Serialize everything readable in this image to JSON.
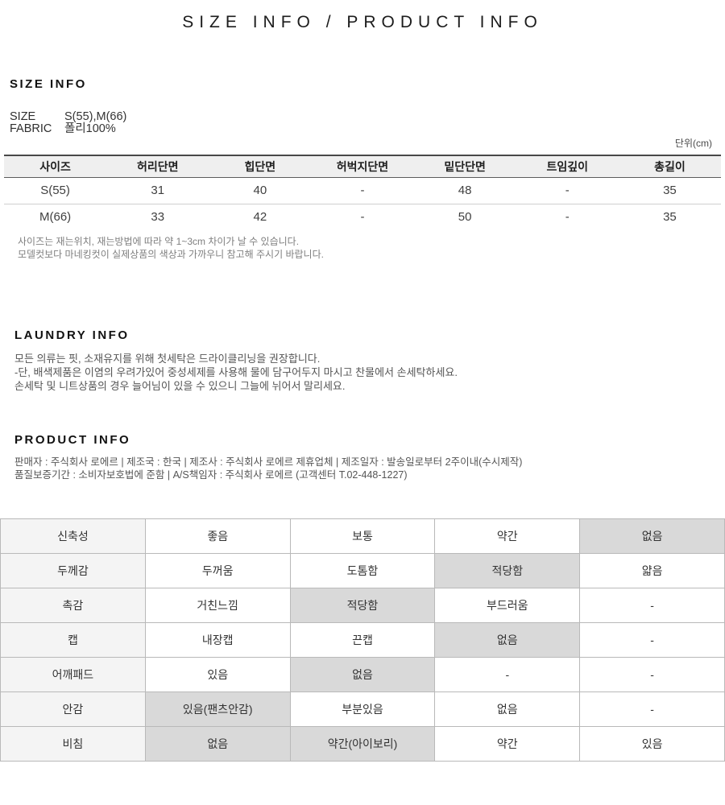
{
  "page_title": "SIZE INFO / PRODUCT INFO",
  "size_info": {
    "heading": "SIZE INFO",
    "fields": [
      {
        "label": "SIZE",
        "value": "S(55),M(66)"
      },
      {
        "label": "FABRIC",
        "value": "폴리100%"
      }
    ],
    "unit_label": "단위(cm)",
    "table": {
      "headers": [
        "사이즈",
        "허리단면",
        "힙단면",
        "허벅지단면",
        "밑단단면",
        "트임깊이",
        "총길이"
      ],
      "rows": [
        [
          "S(55)",
          "31",
          "40",
          "-",
          "48",
          "-",
          "35"
        ],
        [
          "M(66)",
          "33",
          "42",
          "-",
          "50",
          "-",
          "35"
        ]
      ]
    },
    "notes": [
      "사이즈는 재는위치, 재는방법에 따라 약 1~3cm 차이가 날 수 있습니다.",
      "모델컷보다 마네킹컷이 실제상품의 색상과 가까우니 참고해 주시기 바랍니다."
    ]
  },
  "laundry_info": {
    "heading": "LAUNDRY INFO",
    "lines": [
      "모든 의류는 핏, 소재유지를 위해 첫세탁은 드라이클리닝을 권장합니다.",
      "-단, 배색제품은 이염의 우려가있어 중성세제를 사용해 물에 담구어두지 마시고 찬물에서 손세탁하세요.",
      "손세탁 및 니트상품의 경우 늘어님이 있을 수 있으니 그늘에 뉘어서 말리세요."
    ]
  },
  "product_info": {
    "heading": "PRODUCT INFO",
    "lines": [
      "판매자 : 주식회사 로에르 | 제조국 : 한국 | 제조사 : 주식회사 로에르 제휴업체 | 제조일자 : 발송일로부터 2주이내(수시제작)",
      "품질보증기간 : 소비자보호법에 준함 | A/S책임자 : 주식회사 로에르 (고객센터 T.02-448-1227)"
    ]
  },
  "spec_table": {
    "rows": [
      {
        "label": "신축성",
        "options": [
          {
            "text": "좋음",
            "selected": false
          },
          {
            "text": "보통",
            "selected": false
          },
          {
            "text": "약간",
            "selected": false
          },
          {
            "text": "없음",
            "selected": true
          }
        ]
      },
      {
        "label": "두께감",
        "options": [
          {
            "text": "두꺼움",
            "selected": false
          },
          {
            "text": "도톰함",
            "selected": false
          },
          {
            "text": "적당함",
            "selected": true
          },
          {
            "text": "얇음",
            "selected": false
          }
        ]
      },
      {
        "label": "촉감",
        "options": [
          {
            "text": "거친느낌",
            "selected": false
          },
          {
            "text": "적당함",
            "selected": true
          },
          {
            "text": "부드러움",
            "selected": false
          },
          {
            "text": "-",
            "selected": false
          }
        ]
      },
      {
        "label": "캡",
        "options": [
          {
            "text": "내장캡",
            "selected": false
          },
          {
            "text": "끈캡",
            "selected": false
          },
          {
            "text": "없음",
            "selected": true
          },
          {
            "text": "-",
            "selected": false
          }
        ]
      },
      {
        "label": "어깨패드",
        "options": [
          {
            "text": "있음",
            "selected": false
          },
          {
            "text": "없음",
            "selected": true
          },
          {
            "text": "-",
            "selected": false
          },
          {
            "text": "-",
            "selected": false
          }
        ]
      },
      {
        "label": "안감",
        "options": [
          {
            "text": "있음(팬츠안감)",
            "selected": true
          },
          {
            "text": "부분있음",
            "selected": false
          },
          {
            "text": "없음",
            "selected": false
          },
          {
            "text": "-",
            "selected": false
          }
        ]
      },
      {
        "label": "비침",
        "options": [
          {
            "text": "없음",
            "selected": true
          },
          {
            "text": "약간(아이보리)",
            "selected": true
          },
          {
            "text": "약간",
            "selected": false
          },
          {
            "text": "있음",
            "selected": false
          }
        ]
      }
    ]
  },
  "colors": {
    "size_header_bg": "#efefef",
    "spec_rowhead_bg": "#f4f4f4",
    "spec_highlight_bg": "#d9d9d9",
    "spec_border": "#b9b9b9"
  }
}
